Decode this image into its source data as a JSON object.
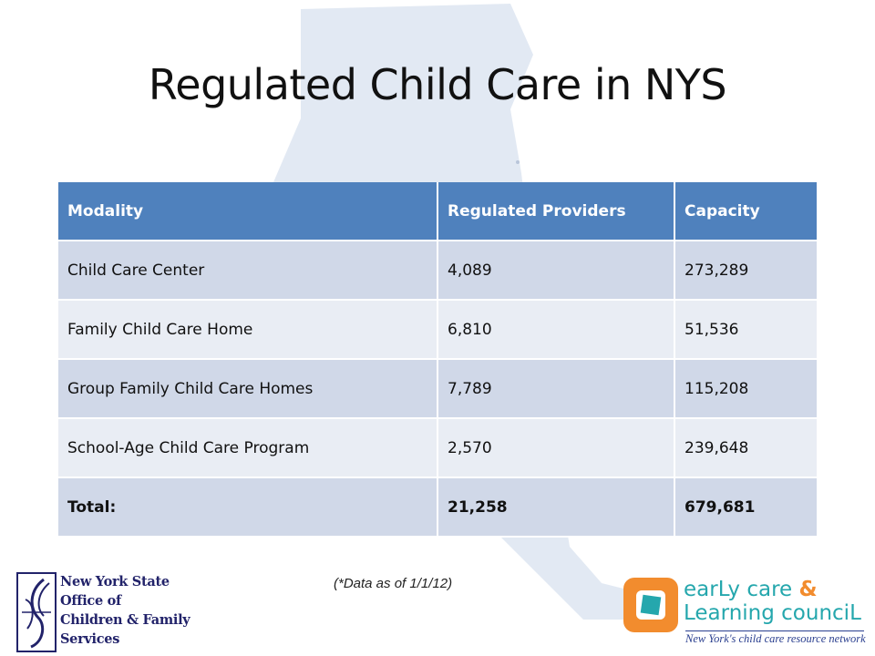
{
  "slide": {
    "title": "Regulated Child Care in NYS",
    "footnote": "(*Data as of 1/1/12)"
  },
  "table": {
    "headers": [
      "Modality",
      "Regulated Providers",
      "Capacity"
    ],
    "rows": [
      [
        "Child Care Center",
        "4,089",
        "273,289"
      ],
      [
        "Family Child Care Home",
        "6,810",
        "51,536"
      ],
      [
        "Group Family Child Care Homes",
        "7,789",
        "115,208"
      ],
      [
        "School-Age Child Care Program",
        "2,570",
        "239,648"
      ],
      [
        "Total:",
        "21,258",
        "679,681"
      ]
    ]
  },
  "logos": {
    "ocfs": {
      "lines": [
        "New York State",
        "Office of",
        "Children & Family",
        "Services"
      ],
      "icon": "ocfs-seal-icon"
    },
    "eclc": {
      "line1_a": "earLy care",
      "line1_b": "&",
      "line2": "Learning counciL",
      "tagline": "New York's child care resource network",
      "icon": "eclc-square-icon"
    }
  },
  "colors": {
    "header_bg": "#4f81bd",
    "row_dark": "#d0d8e8",
    "row_light": "#e9edf4",
    "map_watermark": "#dde5f1",
    "eclc_teal": "#25a7ad",
    "eclc_orange": "#f28c2e",
    "ocfs_navy": "#22236a"
  }
}
